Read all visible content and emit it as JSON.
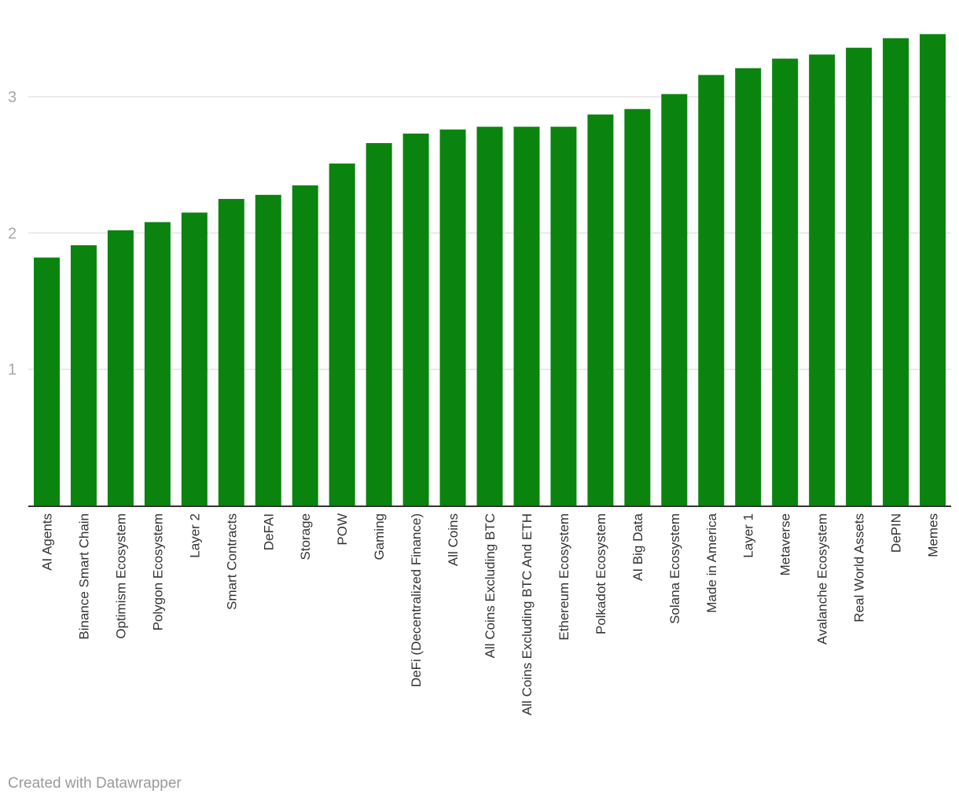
{
  "chart_data": {
    "type": "bar",
    "categories": [
      "AI Agents",
      "Binance Smart Chain",
      "Optimism Ecosystem",
      "Polygon Ecosystem",
      "Layer 2",
      "Smart Contracts",
      "DeFAI",
      "Storage",
      "POW",
      "Gaming",
      "DeFi (Decentralized Finance)",
      "All Coins",
      "All Coins Excluding BTC",
      "All Coins Excluding BTC And ETH",
      "Ethereum Ecosystem",
      "Polkadot Ecosystem",
      "AI Big Data",
      "Solana Ecosystem",
      "Made in America",
      "Layer 1",
      "Metaverse",
      "Avalanche Ecosystem",
      "Real World Assets",
      "DePIN",
      "Memes"
    ],
    "values": [
      1.82,
      1.91,
      2.02,
      2.08,
      2.15,
      2.25,
      2.28,
      2.35,
      2.51,
      2.66,
      2.73,
      2.76,
      2.78,
      2.78,
      2.78,
      2.87,
      2.91,
      3.02,
      3.16,
      3.21,
      3.28,
      3.31,
      3.36,
      3.43,
      3.46
    ],
    "ylim": [
      0,
      3.5
    ],
    "yticks": [
      1,
      2,
      3
    ],
    "grid": true,
    "color": "#0a840f"
  },
  "footer": {
    "credit": "Created with Datawrapper"
  }
}
